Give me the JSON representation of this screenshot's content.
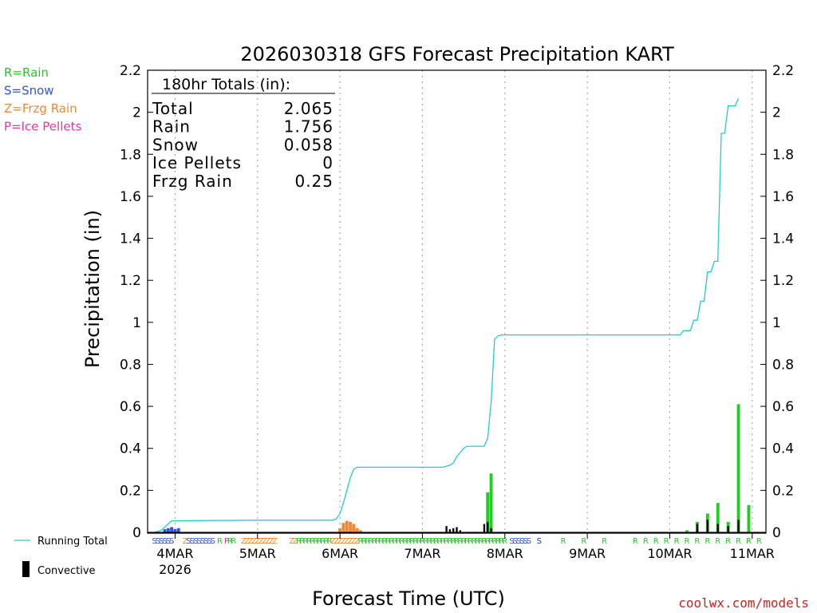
{
  "chart_data": {
    "type": "bar",
    "title": "2026030318 GFS Forecast Precipitation KART",
    "xlabel": "Forecast Time (UTC)",
    "ylabel": "Precipitation (in)",
    "ylim": [
      0,
      2.2
    ],
    "yticks": [
      0,
      0.2,
      0.4,
      0.6,
      0.8,
      1,
      1.2,
      1.4,
      1.6,
      1.8,
      2,
      2.2
    ],
    "ytick_labels": [
      "0",
      "0.2",
      "0.4",
      "0.6",
      "0.8",
      "1",
      "1.2",
      "1.4",
      "1.6",
      "1.8",
      "2",
      "2.2"
    ],
    "x_unit": "forecast hour",
    "xlim": [
      -2,
      178
    ],
    "x_ticks": [
      {
        "hour": 6,
        "label": "4MAR",
        "sublabel": "2026"
      },
      {
        "hour": 30,
        "label": "5MAR"
      },
      {
        "hour": 54,
        "label": "6MAR"
      },
      {
        "hour": 78,
        "label": "7MAR"
      },
      {
        "hour": 102,
        "label": "8MAR"
      },
      {
        "hour": 126,
        "label": "9MAR"
      },
      {
        "hour": 150,
        "label": "10MAR"
      },
      {
        "hour": 174,
        "label": "11MAR"
      }
    ],
    "legend_types": [
      {
        "text": "R=Rain",
        "color": "#22cc22"
      },
      {
        "text": "S=Snow",
        "color": "#3355dd"
      },
      {
        "text": "Z=Frzg Rain",
        "color": "#ee8833"
      },
      {
        "text": "P=Ice Pellets",
        "color": "#ee3399"
      }
    ],
    "legend_series": [
      {
        "text": "Running Total",
        "color": "#22cccc"
      },
      {
        "text": "Convective",
        "color": "#000000"
      }
    ],
    "totals": {
      "header": "180hr Totals (in):",
      "rows": [
        {
          "label": "Total",
          "value": "2.065"
        },
        {
          "label": "Rain",
          "value": "1.756"
        },
        {
          "label": "Snow",
          "value": "0.058"
        },
        {
          "label": "Ice Pellets",
          "value": "0"
        },
        {
          "label": "Frzg Rain",
          "value": "0.25"
        }
      ]
    },
    "credit": "coolwx.com/models",
    "running_total": [
      [
        0,
        0
      ],
      [
        2,
        0.01
      ],
      [
        3,
        0.025
      ],
      [
        4,
        0.04
      ],
      [
        5,
        0.055
      ],
      [
        30,
        0.058
      ],
      [
        52,
        0.058
      ],
      [
        53,
        0.065
      ],
      [
        54,
        0.09
      ],
      [
        55,
        0.14
      ],
      [
        56,
        0.2
      ],
      [
        57,
        0.26
      ],
      [
        58,
        0.3
      ],
      [
        59,
        0.31
      ],
      [
        84,
        0.31
      ],
      [
        86,
        0.32
      ],
      [
        87,
        0.33
      ],
      [
        88,
        0.36
      ],
      [
        89,
        0.38
      ],
      [
        90,
        0.4
      ],
      [
        91,
        0.41
      ],
      [
        96,
        0.41
      ],
      [
        97,
        0.45
      ],
      [
        98,
        0.62
      ],
      [
        99,
        0.92
      ],
      [
        100,
        0.935
      ],
      [
        101,
        0.94
      ],
      [
        153,
        0.94
      ],
      [
        154,
        0.96
      ],
      [
        156,
        0.96
      ],
      [
        157,
        1.01
      ],
      [
        158,
        1.01
      ],
      [
        159,
        1.1
      ],
      [
        160,
        1.1
      ],
      [
        161,
        1.24
      ],
      [
        162,
        1.24
      ],
      [
        163,
        1.29
      ],
      [
        164,
        1.29
      ],
      [
        165,
        1.9
      ],
      [
        166,
        1.9
      ],
      [
        167,
        2.03
      ],
      [
        169,
        2.03
      ],
      [
        170,
        2.065
      ]
    ],
    "series": [
      {
        "name": "Rain",
        "color": "#22cc22",
        "bars": [
          [
            97,
            0.19
          ],
          [
            98,
            0.28
          ],
          [
            155,
            0.01
          ],
          [
            158,
            0.05
          ],
          [
            161,
            0.09
          ],
          [
            164,
            0.14
          ],
          [
            167,
            0.05
          ],
          [
            170,
            0.61
          ],
          [
            173,
            0.13
          ]
        ]
      },
      {
        "name": "Snow",
        "color": "#3355dd",
        "bars": [
          [
            3,
            0.015
          ],
          [
            4,
            0.02
          ],
          [
            5,
            0.025
          ],
          [
            6,
            0.015
          ],
          [
            7,
            0.02
          ]
        ]
      },
      {
        "name": "Frzg Rain",
        "color": "#ee8833",
        "bars": [
          [
            54,
            0.02
          ],
          [
            55,
            0.045
          ],
          [
            56,
            0.055
          ],
          [
            57,
            0.05
          ],
          [
            58,
            0.04
          ],
          [
            59,
            0.02
          ],
          [
            60,
            0.01
          ]
        ]
      },
      {
        "name": "Convective",
        "color": "#000000",
        "bars": [
          [
            85,
            0.03
          ],
          [
            86,
            0.015
          ],
          [
            87,
            0.02
          ],
          [
            88,
            0.025
          ],
          [
            89,
            0.01
          ],
          [
            96,
            0.04
          ],
          [
            97,
            0.05
          ],
          [
            98,
            0.02
          ],
          [
            158,
            0.04
          ],
          [
            161,
            0.06
          ],
          [
            164,
            0.04
          ],
          [
            167,
            0.03
          ],
          [
            170,
            0.06
          ]
        ]
      }
    ],
    "ptype_strip": [
      {
        "start": 0,
        "end": 6,
        "code": "S",
        "color": "#3355dd"
      },
      {
        "start": 9,
        "end": 10,
        "code": "Z",
        "color": "#ee8833"
      },
      {
        "start": 10,
        "end": 18,
        "code": "S",
        "color": "#3355dd"
      },
      {
        "start": 19,
        "end": 20,
        "code": "R",
        "color": "#22cc22"
      },
      {
        "start": 21,
        "end": 22,
        "code": "P",
        "color": "#ee3399"
      },
      {
        "start": 22,
        "end": 24,
        "code": "R",
        "color": "#22cc22"
      },
      {
        "start": 26,
        "end": 36,
        "code": "Z",
        "color": "#ee8833"
      },
      {
        "start": 40,
        "end": 42,
        "code": "Z",
        "color": "#ee8833"
      },
      {
        "start": 42,
        "end": 52,
        "code": "R",
        "color": "#22cc22"
      },
      {
        "start": 52,
        "end": 60,
        "code": "Z",
        "color": "#ee8833"
      },
      {
        "start": 60,
        "end": 91,
        "code": "R",
        "color": "#22cc22"
      },
      {
        "start": 91,
        "end": 103,
        "code": "R",
        "color": "#22cc22"
      },
      {
        "start": 104,
        "end": 110,
        "code": "S",
        "color": "#3355dd"
      },
      {
        "start": 112,
        "end": 113,
        "code": "S",
        "color": "#3355dd"
      },
      {
        "start": 112,
        "end": 113,
        "code": "S",
        "color": "#3355dd"
      }
    ],
    "ptype_marks": [
      {
        "hour": 119,
        "code": "R",
        "color": "#22cc22"
      },
      {
        "hour": 125,
        "code": "R",
        "color": "#22cc22"
      },
      {
        "hour": 131,
        "code": "R",
        "color": "#22cc22"
      },
      {
        "hour": 140,
        "code": "R",
        "color": "#22cc22"
      },
      {
        "hour": 143,
        "code": "R",
        "color": "#22cc22"
      },
      {
        "hour": 146,
        "code": "R",
        "color": "#22cc22"
      },
      {
        "hour": 149,
        "code": "R",
        "color": "#22cc22"
      },
      {
        "hour": 152,
        "code": "R",
        "color": "#22cc22"
      },
      {
        "hour": 155,
        "code": "R",
        "color": "#22cc22"
      },
      {
        "hour": 158,
        "code": "R",
        "color": "#22cc22"
      },
      {
        "hour": 161,
        "code": "R",
        "color": "#22cc22"
      },
      {
        "hour": 164,
        "code": "R",
        "color": "#22cc22"
      },
      {
        "hour": 167,
        "code": "R",
        "color": "#22cc22"
      },
      {
        "hour": 170,
        "code": "R",
        "color": "#22cc22"
      },
      {
        "hour": 173,
        "code": "R",
        "color": "#22cc22"
      },
      {
        "hour": 176,
        "code": "R",
        "color": "#22cc22"
      }
    ]
  }
}
